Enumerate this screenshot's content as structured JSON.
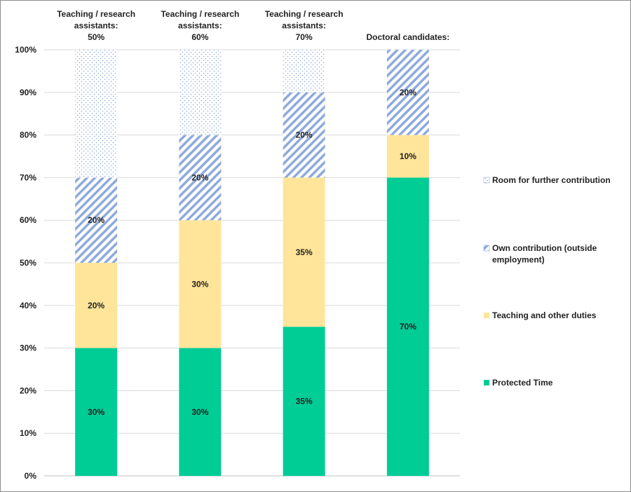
{
  "chart_data": {
    "type": "bar",
    "stacked": true,
    "categories": [
      [
        "Teaching / research",
        "assistants:",
        "50%"
      ],
      [
        "Teaching / research",
        "assistants:",
        "60%"
      ],
      [
        "Teaching / research",
        "assistants:",
        "70%"
      ],
      [
        "Doctoral candidates:"
      ]
    ],
    "series": [
      {
        "name": "Protected Time",
        "values": [
          30,
          30,
          35,
          70
        ],
        "color": "#00cc96",
        "pattern": "solid"
      },
      {
        "name": "Teaching and other duties",
        "values": [
          20,
          30,
          35,
          10
        ],
        "color": "#ffe599",
        "pattern": "solid"
      },
      {
        "name": "Own contribution (outside employment)",
        "values": [
          20,
          20,
          20,
          20
        ],
        "color": "#8eaadb",
        "pattern": "diagonal-stripes"
      },
      {
        "name": "Room for further contribution",
        "values": [
          30,
          20,
          10,
          0
        ],
        "color": "#8eaadb",
        "pattern": "dots"
      }
    ],
    "data_labels": [
      [
        "30%",
        "20%",
        "20%",
        ""
      ],
      [
        "30%",
        "30%",
        "20%",
        ""
      ],
      [
        "35%",
        "35%",
        "20%",
        ""
      ],
      [
        "70%",
        "10%",
        "20%",
        ""
      ]
    ],
    "y_ticks": [
      "0%",
      "10%",
      "20%",
      "30%",
      "40%",
      "50%",
      "60%",
      "70%",
      "80%",
      "90%",
      "100%"
    ],
    "ylim": [
      0,
      100
    ],
    "grid": true,
    "legend": {
      "placement": "right",
      "order": [
        "Room for further contribution",
        "Own contribution (outside employment)",
        "Teaching and other duties",
        "Protected Time"
      ],
      "labels": [
        [
          "Room for further contribution"
        ],
        [
          "Own contribution (outside",
          "employment)"
        ],
        [
          "Teaching and other duties"
        ],
        [
          "Protected Time"
        ]
      ]
    }
  }
}
